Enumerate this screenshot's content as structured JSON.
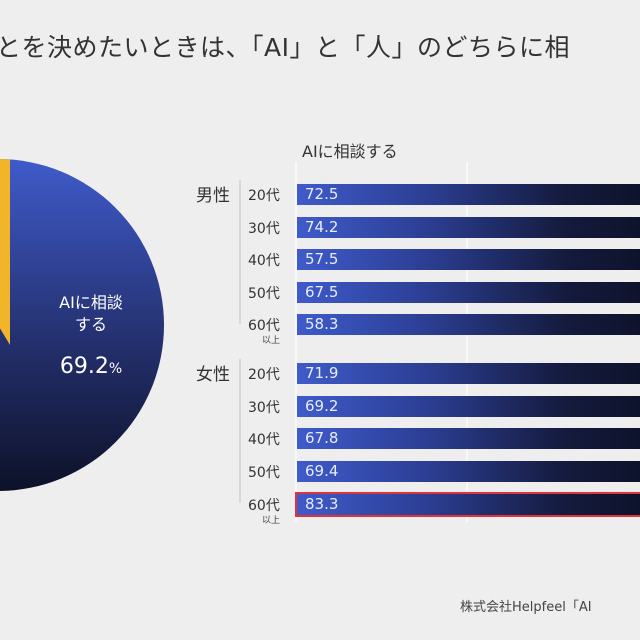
{
  "title": "とを決めたいときは、「AI」と「人」のどちらに相",
  "source": "株式会社Helpfeel「AI",
  "colors": {
    "ai": "#3f5bca",
    "ai_dark": "#0d1128",
    "human": "#f2b428",
    "highlight": "#e0343a"
  },
  "chart_data": [
    {
      "type": "pie",
      "slices": [
        {
          "label": "AIに相談する",
          "value": 69.2
        }
      ],
      "label_lines": [
        "AIに相談",
        "する"
      ],
      "value_text": "69.2",
      "unit": "%"
    },
    {
      "type": "bar",
      "orientation": "horizontal",
      "legend": "AIに相談する",
      "groups": [
        {
          "name": "男性",
          "categories": [
            "20代",
            "30代",
            "40代",
            "50代",
            "60代"
          ],
          "values": [
            72.5,
            74.2,
            57.5,
            67.5,
            58.3
          ],
          "last_sub": "以上"
        },
        {
          "name": "女性",
          "categories": [
            "20代",
            "30代",
            "40代",
            "50代",
            "60代"
          ],
          "values": [
            71.9,
            69.2,
            67.8,
            69.4,
            83.3
          ],
          "last_sub": "以上",
          "highlighted": "60代"
        }
      ]
    }
  ]
}
